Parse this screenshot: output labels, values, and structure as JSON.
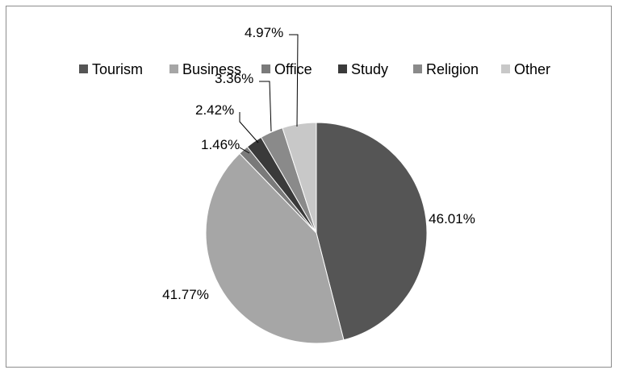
{
  "chart_data": {
    "type": "pie",
    "title": "",
    "legend_position": "top",
    "categories": [
      "Tourism",
      "Business",
      "Office",
      "Study",
      "Religion",
      "Other"
    ],
    "values": [
      46.01,
      41.77,
      1.46,
      2.42,
      3.36,
      4.97
    ],
    "value_labels": [
      "46.01%",
      "41.77%",
      "1.46%",
      "2.42%",
      "3.36%",
      "4.97%"
    ],
    "colors": [
      "#555555",
      "#a6a6a6",
      "#7a7a7a",
      "#3a3a3a",
      "#8a8a8a",
      "#c8c8c8"
    ],
    "start": "12 o'clock",
    "direction": "clockwise"
  }
}
